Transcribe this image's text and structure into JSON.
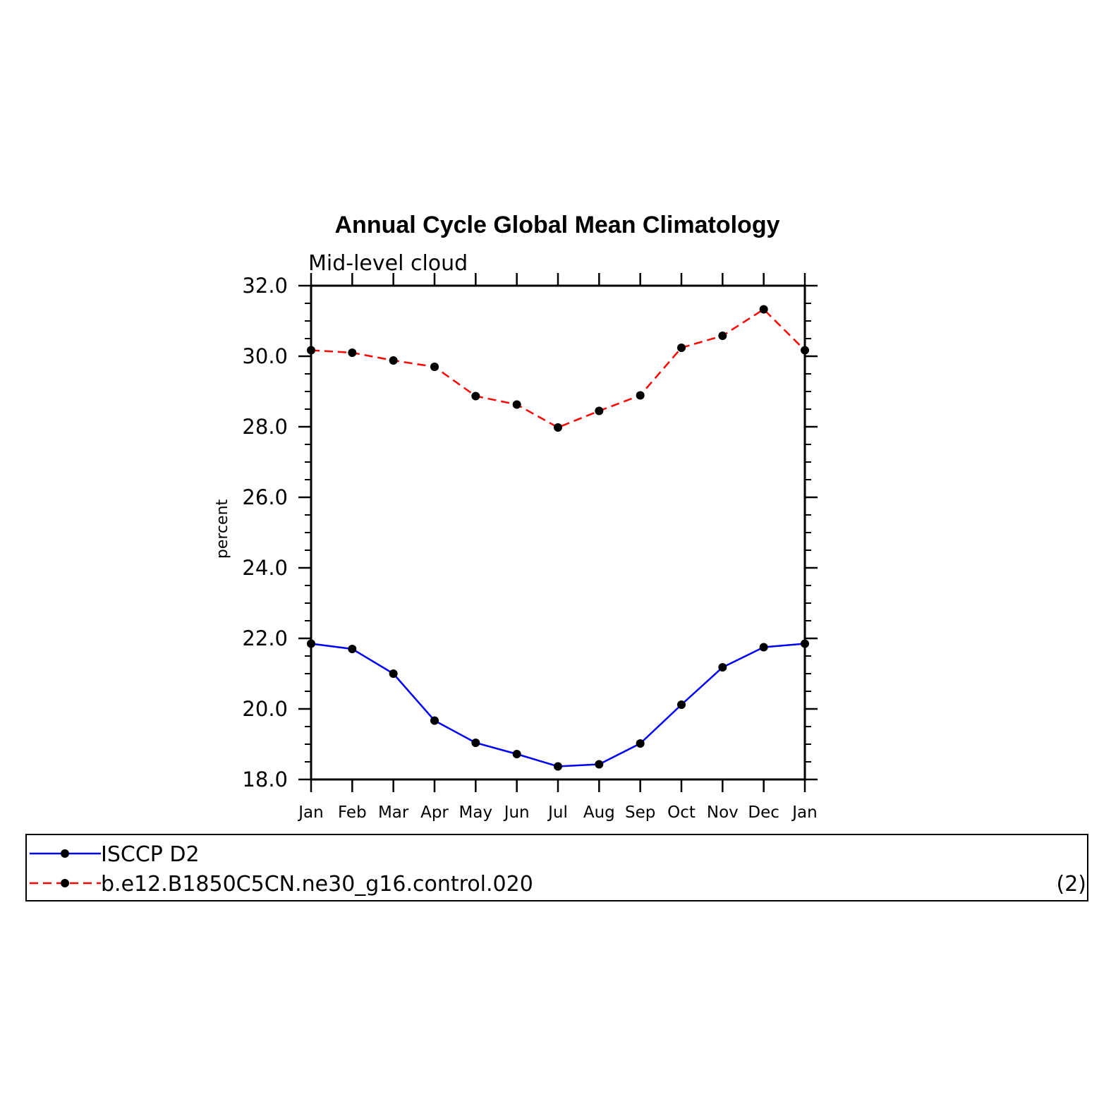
{
  "chart_data": {
    "type": "line",
    "title": "Annual Cycle Global Mean Climatology",
    "subtitle": "Mid-level cloud",
    "xlabel": "",
    "ylabel": "percent",
    "ylim": [
      18.0,
      32.0
    ],
    "yticks": [
      "18.0",
      "20.0",
      "22.0",
      "24.0",
      "26.0",
      "28.0",
      "30.0",
      "32.0"
    ],
    "categories": [
      "Jan",
      "Feb",
      "Mar",
      "Apr",
      "May",
      "Jun",
      "Jul",
      "Aug",
      "Sep",
      "Oct",
      "Nov",
      "Dec",
      "Jan"
    ],
    "series": [
      {
        "name": "ISCCP D2",
        "color": "#0000ff",
        "dash": "solid",
        "values": [
          21.85,
          21.7,
          21.0,
          19.67,
          19.04,
          18.72,
          18.37,
          18.43,
          19.02,
          20.12,
          21.18,
          21.75,
          21.85
        ]
      },
      {
        "name": "b.e12.B1850C5CN.ne30_g16.control.020",
        "color": "#ff0000",
        "dash": "dashed",
        "values": [
          30.17,
          30.1,
          29.88,
          29.7,
          28.87,
          28.63,
          27.98,
          28.45,
          28.89,
          30.24,
          30.58,
          31.33,
          30.17
        ]
      }
    ],
    "legend": {
      "position": "bottom",
      "note": "(2)"
    }
  }
}
